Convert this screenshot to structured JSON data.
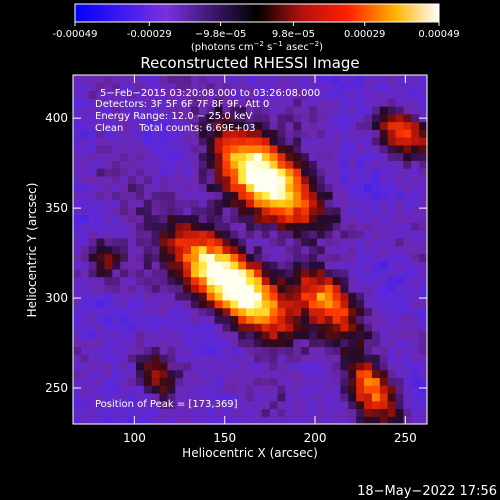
{
  "colorbar": {
    "ticks": [
      "-0.00049",
      "-0.00029",
      "−9.8e−05",
      "9.8e−05",
      "0.00029",
      "0.00049"
    ],
    "tick_values": [
      -0.00049,
      -0.00029,
      -9.8e-05,
      9.8e-05,
      0.00029,
      0.00049
    ],
    "range": [
      -0.00049,
      0.00049
    ],
    "units_main": "(photons cm",
    "units_exp1": "−2",
    "units_mid": " s",
    "units_exp2": "−1",
    "units_mid2": " asec",
    "units_exp3": "−2",
    "units_end": ")"
  },
  "chart_data": {
    "type": "heatmap",
    "title": "Reconstructed RHESSI Image",
    "xlabel": "Heliocentric X (arcsec)",
    "ylabel": "Heliocentric Y (arcsec)",
    "xlim": [
      66,
      262
    ],
    "ylim": [
      230,
      424
    ],
    "xticks": [
      100,
      150,
      200,
      250
    ],
    "yticks": [
      250,
      300,
      350,
      400
    ],
    "xtick_labels": [
      "100",
      "150",
      "200",
      "250"
    ],
    "ytick_labels": [
      "250",
      "300",
      "350",
      "400"
    ],
    "annotations": [
      "5−Feb−2015 03:20:08.000 to 03:26:08.000",
      "Detectors: 3F 5F 6F 7F 8F 9F, Att 0",
      "Energy Range: 12.0 − 25.0 keV",
      "Clean     Total counts: 6.69E+03"
    ],
    "peak_label": "Position of Peak = [173,369]",
    "peak": [
      173,
      369
    ],
    "sources": [
      {
        "x": 172,
        "y": 368,
        "sx": 22,
        "sy": 12,
        "angle": 135,
        "amp": 1.0
      },
      {
        "x": 152,
        "y": 310,
        "sx": 30,
        "sy": 11,
        "angle": 140,
        "amp": 0.95
      },
      {
        "x": 205,
        "y": 300,
        "sx": 16,
        "sy": 9,
        "angle": 135,
        "amp": 0.55
      },
      {
        "x": 232,
        "y": 250,
        "sx": 14,
        "sy": 8,
        "angle": 125,
        "amp": 0.55
      },
      {
        "x": 250,
        "y": 392,
        "sx": 12,
        "sy": 7,
        "angle": 160,
        "amp": 0.45
      },
      {
        "x": 112,
        "y": 258,
        "sx": 10,
        "sy": 6,
        "angle": 110,
        "amp": 0.3
      },
      {
        "x": 84,
        "y": 322,
        "sx": 8,
        "sy": 6,
        "angle": 90,
        "amp": 0.35
      }
    ]
  },
  "footer": {
    "date": "18−May−2022 17:56"
  }
}
